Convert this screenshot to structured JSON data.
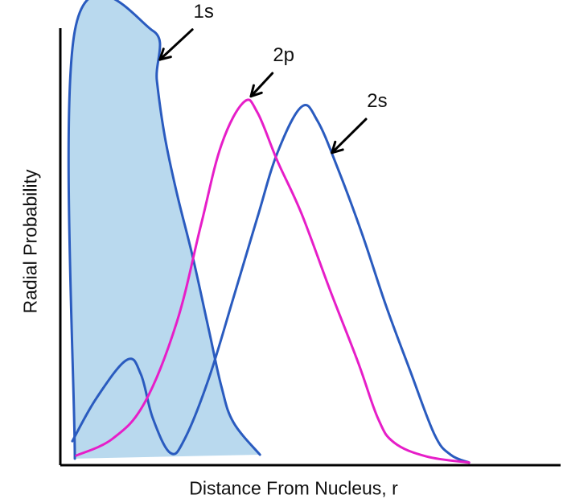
{
  "chart_data": {
    "type": "line",
    "title": "",
    "xlabel": "Distance From Nucleus, r",
    "ylabel": "Radial Probability",
    "xlim": [
      0,
      100
    ],
    "ylim": [
      0,
      100
    ],
    "grid": false,
    "series": [
      {
        "name": "1s",
        "color": "#2a5bbf",
        "fill": "#b9d9ee",
        "points": [
          [
            2.9,
            1.5
          ],
          [
            2.9,
            99.4
          ],
          [
            18.5,
            99.4
          ],
          [
            19.3,
            88
          ],
          [
            20.9,
            75.1
          ],
          [
            23.3,
            62.2
          ],
          [
            26.5,
            47.5
          ],
          [
            29.7,
            30.9
          ],
          [
            32.2,
            18
          ],
          [
            34.6,
            9.8
          ],
          [
            39.9,
            2.4
          ]
        ]
      },
      {
        "name": "2s",
        "color": "#2a5bbf",
        "points": [
          [
            2.4,
            5.5
          ],
          [
            7.2,
            15.3
          ],
          [
            13.3,
            24.1
          ],
          [
            16.1,
            20.8
          ],
          [
            18.5,
            10.7
          ],
          [
            22.0,
            2.8
          ],
          [
            24.9,
            6.1
          ],
          [
            29.7,
            19.9
          ],
          [
            34.6,
            38.3
          ],
          [
            39.4,
            56.7
          ],
          [
            43.4,
            71.5
          ],
          [
            48.2,
            82.0
          ],
          [
            51.4,
            78.8
          ],
          [
            55.5,
            67.8
          ],
          [
            60.3,
            53.0
          ],
          [
            65.1,
            36.5
          ],
          [
            69.9,
            21.7
          ],
          [
            74.8,
            7.0
          ],
          [
            78.0,
            2.4
          ],
          [
            81.7,
            0.6
          ]
        ]
      },
      {
        "name": "2p",
        "color": "#e61ec8",
        "points": [
          [
            3.2,
            2.2
          ],
          [
            10.5,
            6.1
          ],
          [
            16.9,
            14.4
          ],
          [
            23.3,
            32.8
          ],
          [
            28.1,
            54.9
          ],
          [
            32.2,
            73.3
          ],
          [
            36.7,
            83.1
          ],
          [
            39.4,
            80.7
          ],
          [
            43.4,
            69.6
          ],
          [
            48.2,
            57.6
          ],
          [
            53.9,
            40.1
          ],
          [
            59.5,
            23.6
          ],
          [
            63.5,
            10.7
          ],
          [
            66.7,
            5.2
          ],
          [
            73.2,
            2.0
          ],
          [
            81.7,
            0.6
          ]
        ]
      }
    ],
    "annotations": [
      {
        "text": "1s",
        "label_at": [
          28,
          103
        ],
        "arrow_to": [
          19.9,
          92.8
        ]
      },
      {
        "text": "2p",
        "label_at": [
          44,
          93
        ],
        "arrow_to": [
          38.1,
          84.4
        ]
      },
      {
        "text": "2s",
        "label_at": [
          62.7,
          82.5
        ],
        "arrow_to": [
          54.3,
          71.5
        ]
      }
    ]
  }
}
